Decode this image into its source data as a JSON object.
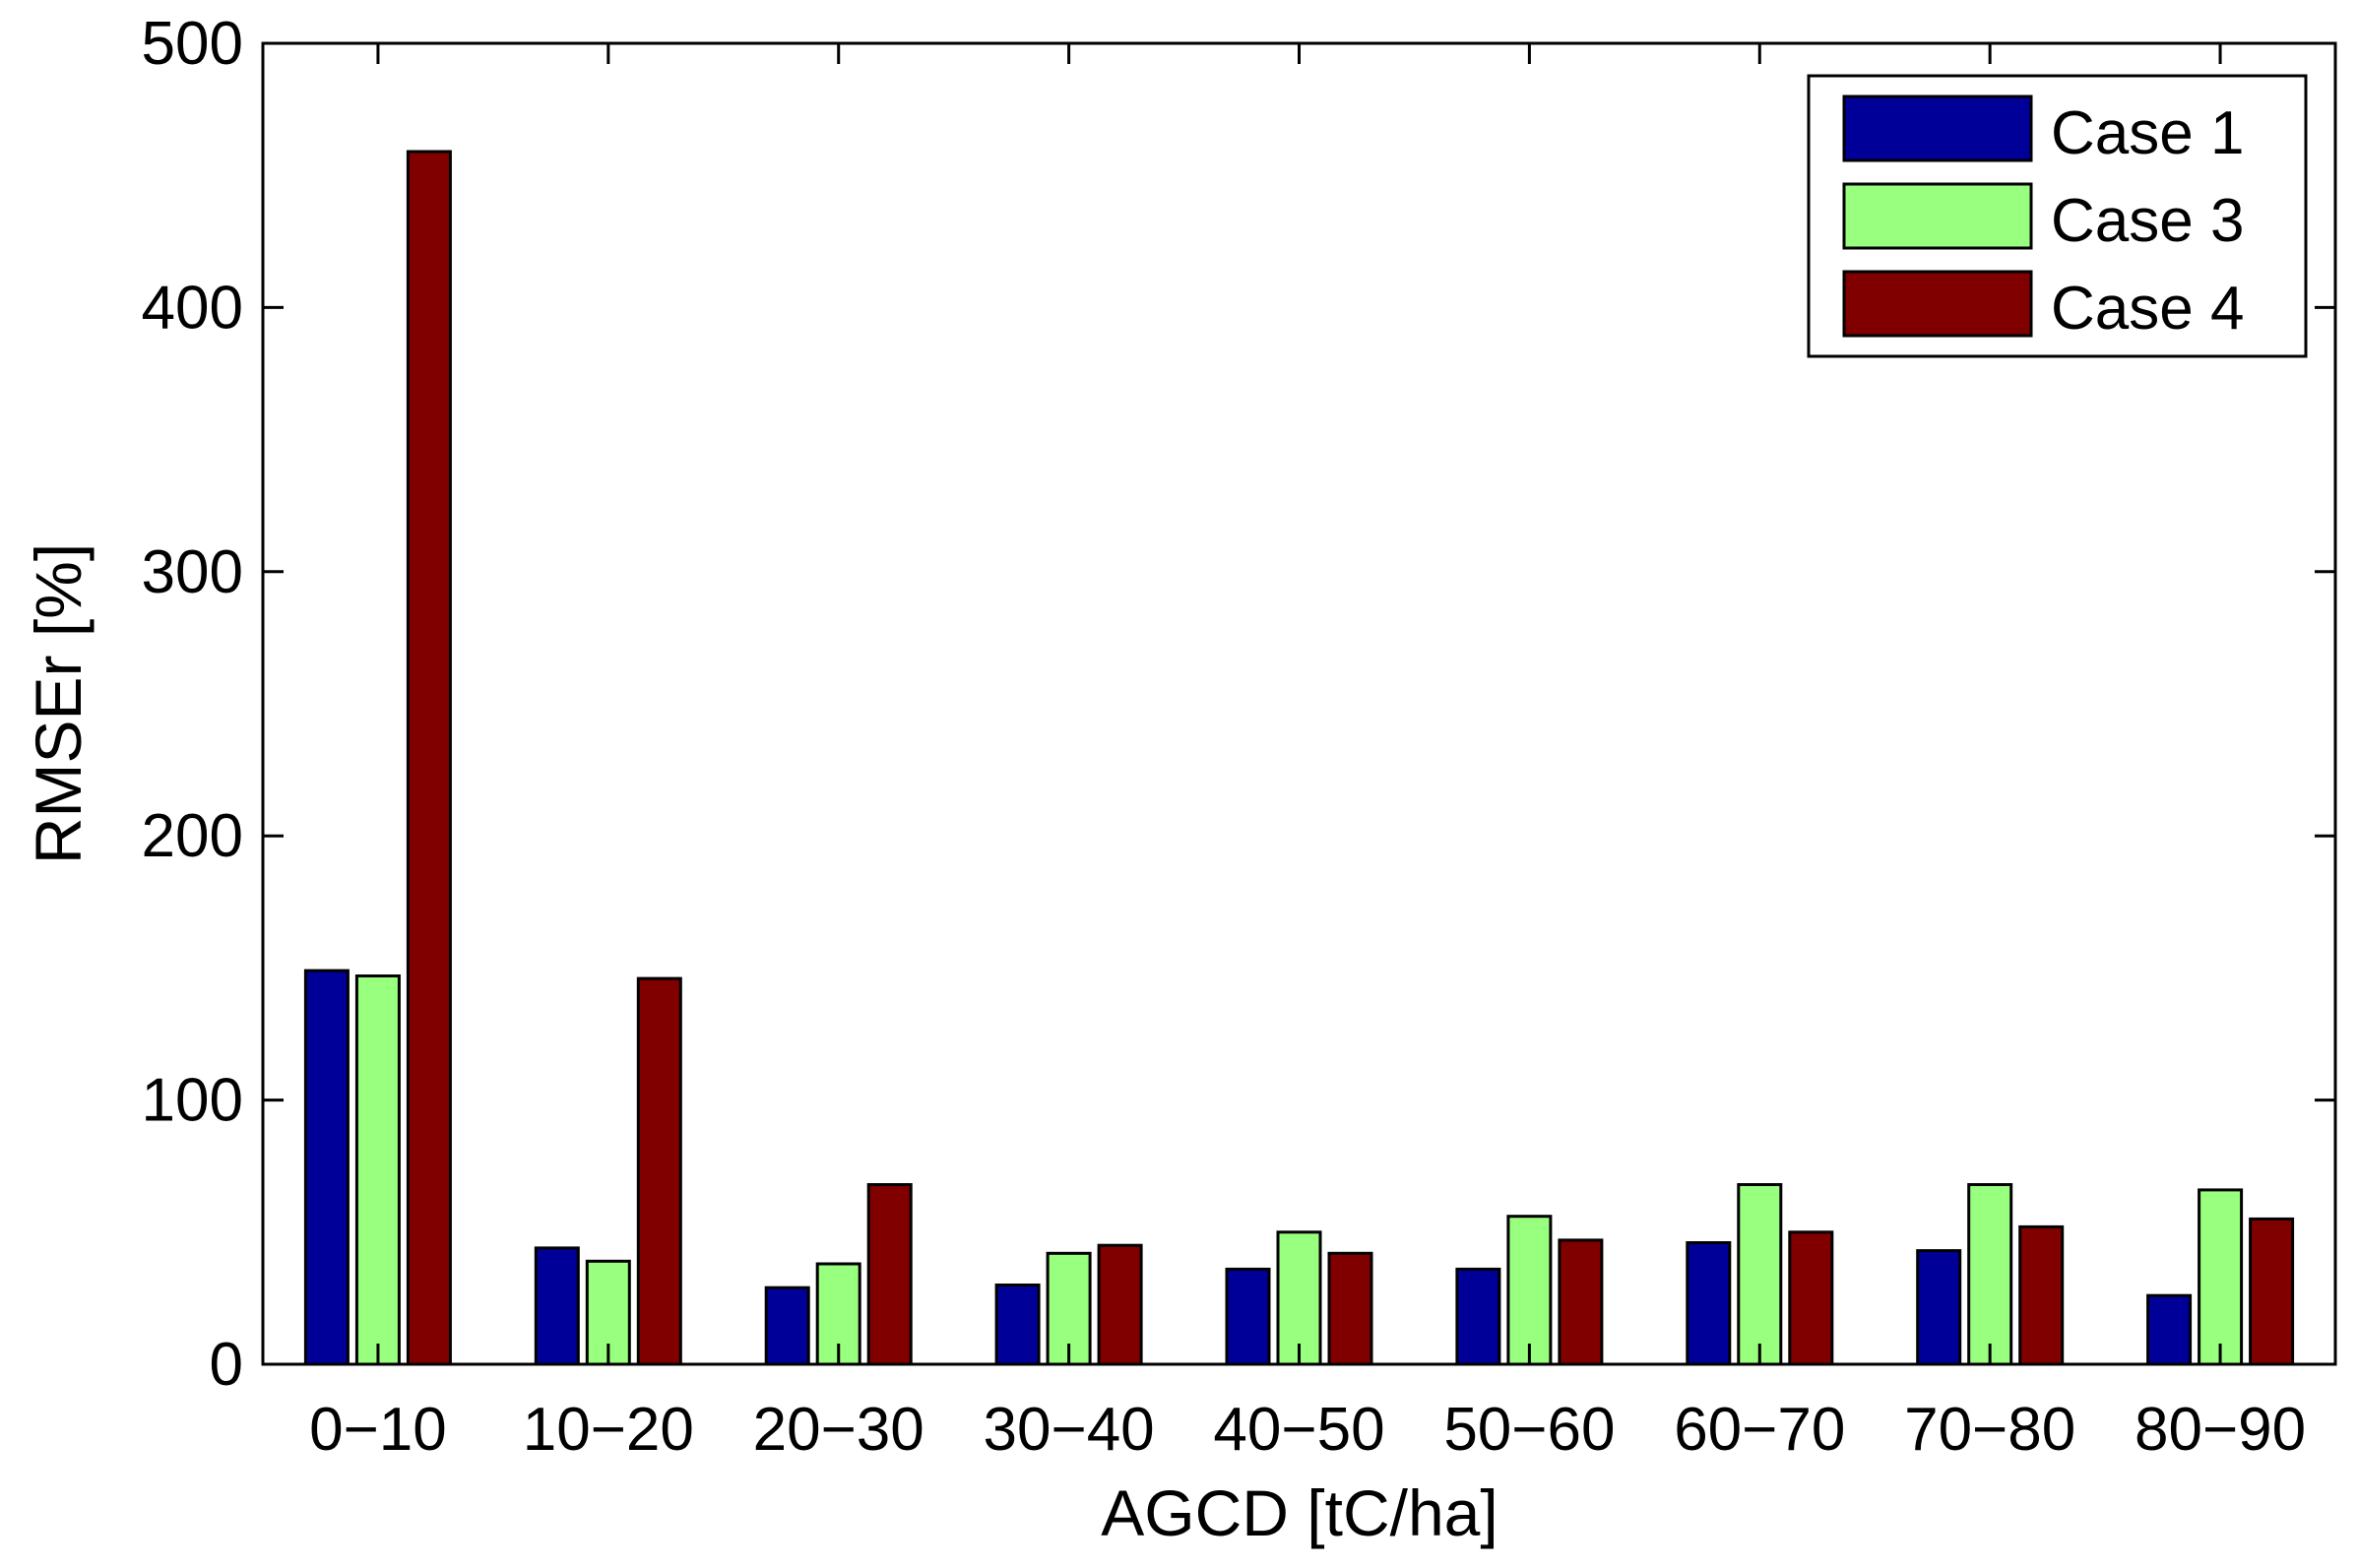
{
  "chart_data": {
    "type": "bar",
    "categories": [
      "0−10",
      "10−20",
      "20−30",
      "30−40",
      "40−50",
      "50−60",
      "60−70",
      "70−80",
      "80−90"
    ],
    "series": [
      {
        "name": "Case 1",
        "color": "#000099",
        "values": [
          149,
          44,
          29,
          30,
          36,
          36,
          46,
          43,
          26
        ]
      },
      {
        "name": "Case 3",
        "color": "#99ff7f",
        "values": [
          147,
          39,
          38,
          42,
          50,
          56,
          68,
          68,
          66
        ]
      },
      {
        "name": "Case 4",
        "color": "#800000",
        "values": [
          459,
          146,
          68,
          45,
          42,
          47,
          50,
          52,
          55
        ]
      }
    ],
    "xlabel": "AGCD [tC/ha]",
    "ylabel": "RMSEr [%]",
    "ylim": [
      0,
      500
    ],
    "yticks": [
      0,
      100,
      200,
      300,
      400,
      500
    ],
    "ytick_labels": [
      "0",
      "100",
      "200",
      "300",
      "400",
      "500"
    ],
    "grid": false,
    "legend_position": "top-right"
  }
}
